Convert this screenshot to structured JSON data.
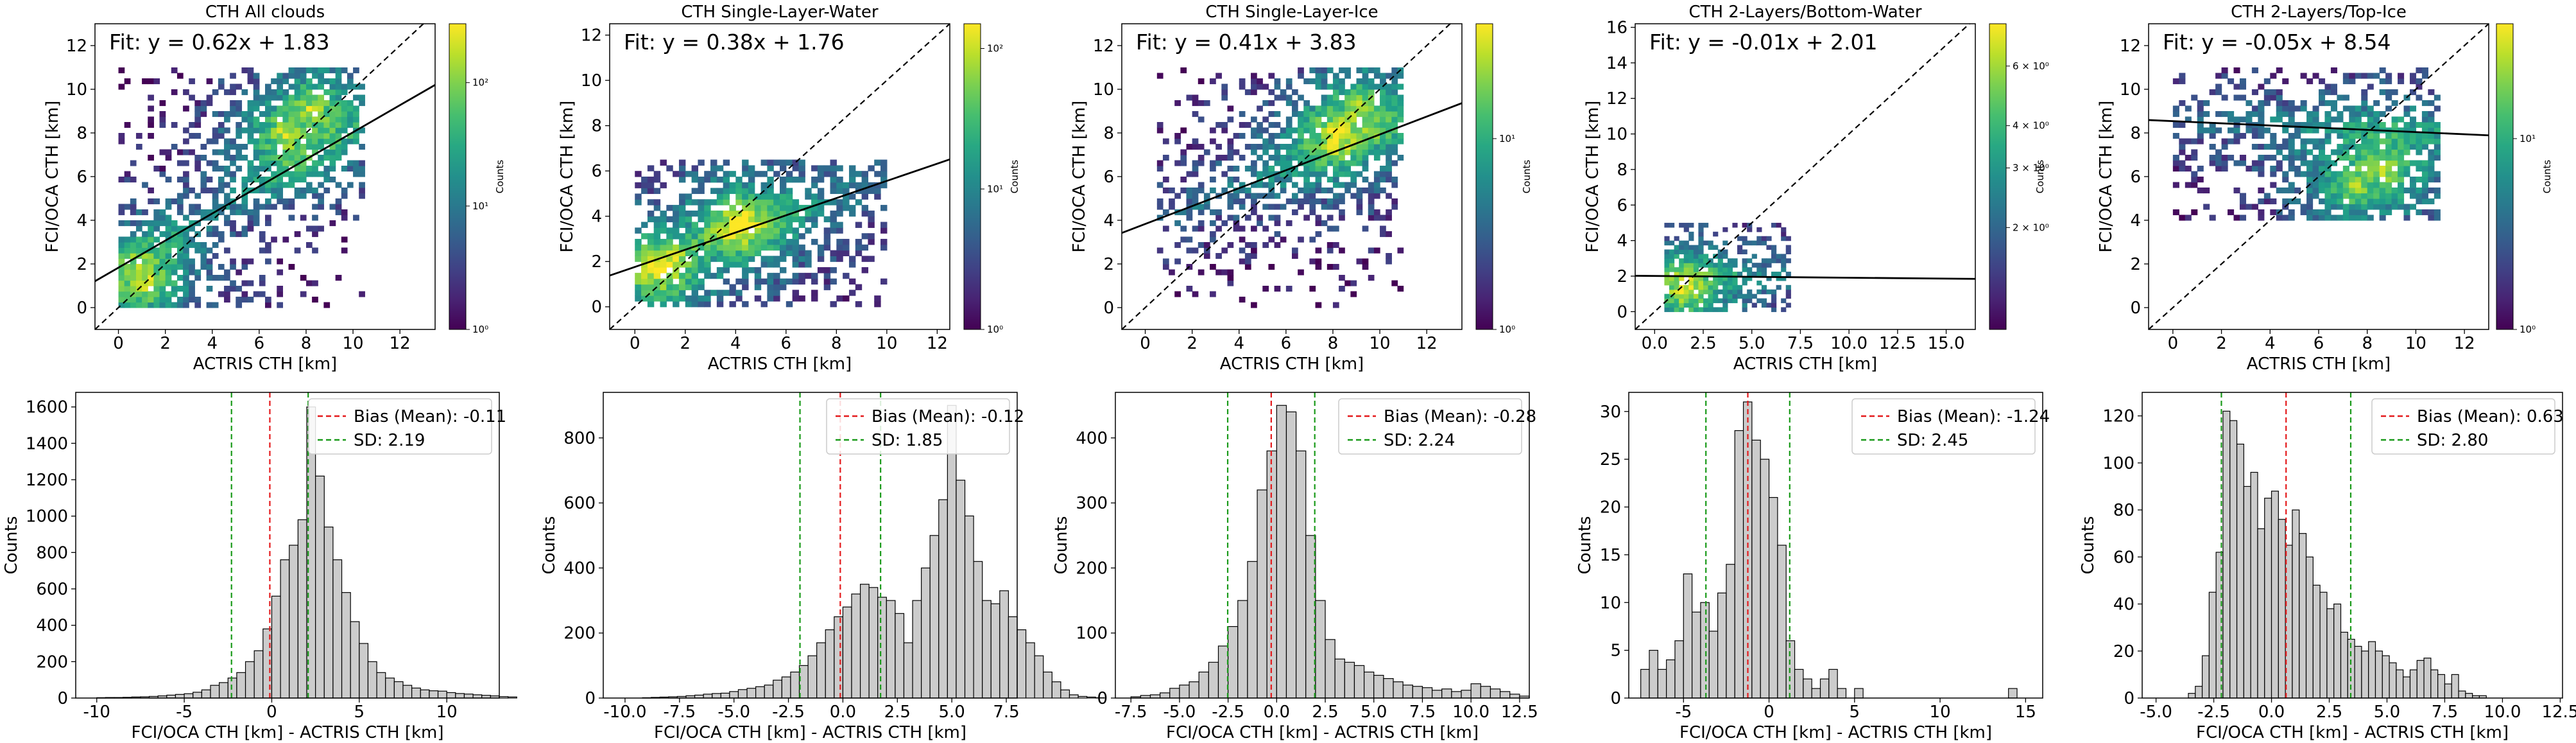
{
  "chart_data": [
    {
      "type": "heatmap",
      "title": "CTH All clouds",
      "xlabel": "ACTRIS CTH [km]",
      "ylabel": "FCI/OCA CTH [km]",
      "xlim": [
        -1,
        13.5
      ],
      "ylim": [
        -1,
        13
      ],
      "xticks": [
        0,
        2,
        4,
        6,
        8,
        10,
        12
      ],
      "yticks": [
        0,
        2,
        4,
        6,
        8,
        10,
        12
      ],
      "fit_text": "Fit: y = 0.62x + 1.83",
      "fit": {
        "slope": 0.62,
        "intercept": 1.83
      },
      "colorbar": {
        "label": "Counts",
        "scale": "log",
        "min": 1,
        "max": 300,
        "ticks": [
          "10⁰",
          "10¹",
          "10²"
        ],
        "tick_values": [
          1,
          10,
          100
        ]
      },
      "cloud": {
        "x": [
          0,
          10.5
        ],
        "y": [
          0,
          11
        ],
        "core": [
          [
            1,
            1
          ],
          [
            7,
            8
          ],
          [
            8,
            9
          ]
        ]
      }
    },
    {
      "type": "heatmap",
      "title": "CTH Single-Layer-Water",
      "xlabel": "ACTRIS CTH [km]",
      "ylabel": "FCI/OCA CTH [km]",
      "xlim": [
        -1,
        12.5
      ],
      "ylim": [
        -1,
        12.5
      ],
      "xticks": [
        0,
        2,
        4,
        6,
        8,
        10,
        12
      ],
      "yticks": [
        0,
        2,
        4,
        6,
        8,
        10,
        12
      ],
      "fit_text": "Fit: y = 0.38x + 1.76",
      "fit": {
        "slope": 0.38,
        "intercept": 1.76
      },
      "colorbar": {
        "label": "Counts",
        "scale": "log",
        "min": 1,
        "max": 150,
        "ticks": [
          "10⁰",
          "10¹",
          "10²"
        ],
        "tick_values": [
          1,
          10,
          100
        ]
      },
      "cloud": {
        "x": [
          0,
          10
        ],
        "y": [
          0,
          6.5
        ],
        "core": [
          [
            1,
            1.5
          ],
          [
            4,
            3.5
          ]
        ]
      }
    },
    {
      "type": "heatmap",
      "title": "CTH Single-Layer-Ice",
      "xlabel": "ACTRIS CTH [km]",
      "ylabel": "FCI/OCA CTH [km]",
      "xlim": [
        -1,
        13.5
      ],
      "ylim": [
        -1,
        13
      ],
      "xticks": [
        0,
        2,
        4,
        6,
        8,
        10,
        12
      ],
      "yticks": [
        0,
        2,
        4,
        6,
        8,
        10,
        12
      ],
      "fit_text": "Fit: y = 0.41x + 3.83",
      "fit": {
        "slope": 0.41,
        "intercept": 3.83
      },
      "colorbar": {
        "label": "Counts",
        "scale": "log",
        "min": 1,
        "max": 40,
        "ticks": [
          "10⁰",
          "10¹"
        ],
        "tick_values": [
          1,
          10
        ]
      },
      "cloud": {
        "x": [
          0.5,
          11
        ],
        "y": [
          0,
          11
        ],
        "core": [
          [
            8,
            8
          ],
          [
            9,
            9
          ]
        ]
      }
    },
    {
      "type": "heatmap",
      "title": "CTH 2-Layers/Bottom-Water",
      "xlabel": "ACTRIS CTH [km]",
      "ylabel": "FCI/OCA CTH [km]",
      "xlim": [
        -1,
        16.5
      ],
      "ylim": [
        -1,
        16.2
      ],
      "xticks": [
        0.0,
        2.5,
        5.0,
        7.5,
        10.0,
        12.5,
        15.0
      ],
      "yticks": [
        0,
        2,
        4,
        6,
        8,
        10,
        12,
        14,
        16
      ],
      "fit_text": "Fit: y = -0.01x + 2.01",
      "fit": {
        "slope": -0.01,
        "intercept": 2.01
      },
      "colorbar": {
        "label": "Counts",
        "scale": "log",
        "min": 1,
        "max": 8,
        "ticks": [
          "2 × 10⁰",
          "3 × 10⁰",
          "4 × 10⁰",
          "6 × 10⁰"
        ],
        "tick_values": [
          2,
          3,
          4,
          6
        ]
      },
      "cloud": {
        "x": [
          0.5,
          7
        ],
        "y": [
          0,
          5
        ],
        "core": [
          [
            1.5,
            1
          ]
        ]
      }
    },
    {
      "type": "heatmap",
      "title": "CTH 2-Layers/Top-Ice",
      "xlabel": "ACTRIS CTH [km]",
      "ylabel": "FCI/OCA CTH [km]",
      "xlim": [
        -1,
        13
      ],
      "ylim": [
        -1,
        13
      ],
      "xticks": [
        0,
        2,
        4,
        6,
        8,
        10,
        12
      ],
      "yticks": [
        0,
        2,
        4,
        6,
        8,
        10,
        12
      ],
      "fit_text": "Fit: y = -0.05x + 8.54",
      "fit": {
        "slope": -0.05,
        "intercept": 8.54
      },
      "colorbar": {
        "label": "Counts",
        "scale": "log",
        "min": 1,
        "max": 40,
        "ticks": [
          "10⁰",
          "10¹"
        ],
        "tick_values": [
          1,
          10
        ]
      },
      "cloud": {
        "x": [
          0,
          11
        ],
        "y": [
          4,
          11
        ],
        "core": [
          [
            7.5,
            5.5
          ],
          [
            8.5,
            6
          ]
        ]
      }
    },
    {
      "type": "bar",
      "subtype": "histogram",
      "xlabel": "FCI/OCA CTH [km] - ACTRIS CTH [km]",
      "ylabel": "Counts",
      "xlim": [
        -11.2,
        13
      ],
      "ylim": [
        0,
        1680
      ],
      "xticks": [
        -10,
        -5,
        0,
        5,
        10
      ],
      "yticks": [
        0,
        200,
        400,
        600,
        800,
        1000,
        1200,
        1400,
        1600
      ],
      "bias": -0.11,
      "sd": 2.19,
      "legend": {
        "bias": "Bias (Mean): -0.11",
        "sd": "SD: 2.19",
        "position": "top-right"
      },
      "bins": {
        "start": -10,
        "width": 0.5
      },
      "counts": [
        2,
        3,
        3,
        4,
        6,
        7,
        9,
        12,
        16,
        20,
        24,
        32,
        45,
        70,
        85,
        110,
        140,
        200,
        260,
        380,
        560,
        760,
        840,
        980,
        1600,
        1220,
        940,
        760,
        580,
        420,
        300,
        200,
        140,
        110,
        90,
        70,
        55,
        45,
        40,
        38,
        30,
        25,
        22,
        18,
        15,
        12,
        8,
        6
      ]
    },
    {
      "type": "bar",
      "subtype": "histogram",
      "xlabel": "FCI/OCA CTH [km] - ACTRIS CTH [km]",
      "ylabel": "Counts",
      "xlim": [
        -11,
        8
      ],
      "ylim": [
        0,
        940
      ],
      "xticks": [
        -10.0,
        -7.5,
        -5.0,
        -2.5,
        0.0,
        2.5,
        5.0,
        7.5
      ],
      "yticks": [
        0,
        200,
        400,
        600,
        800
      ],
      "bias": -0.12,
      "sd": 1.85,
      "legend": {
        "bias": "Bias (Mean): -0.12",
        "sd": "SD: 1.85",
        "position": "top-right"
      },
      "bins": {
        "start": -9.2,
        "width": 0.4
      },
      "counts": [
        1,
        2,
        3,
        4,
        5,
        7,
        9,
        12,
        14,
        15,
        20,
        26,
        30,
        35,
        40,
        55,
        65,
        80,
        100,
        130,
        170,
        210,
        250,
        280,
        320,
        350,
        340,
        310,
        300,
        260,
        170,
        300,
        400,
        500,
        610,
        900,
        670,
        560,
        420,
        300,
        290,
        330,
        250,
        210,
        170,
        130,
        80,
        50,
        25,
        10,
        5,
        3,
        1
      ]
    },
    {
      "type": "bar",
      "subtype": "histogram",
      "xlabel": "FCI/OCA CTH [km] - ACTRIS CTH [km]",
      "ylabel": "Counts",
      "xlim": [
        -8.3,
        13
      ],
      "ylim": [
        0,
        470
      ],
      "xticks": [
        -7.5,
        -5.0,
        -2.5,
        0.0,
        2.5,
        5.0,
        7.5,
        10.0,
        12.5
      ],
      "yticks": [
        0,
        100,
        200,
        300,
        400
      ],
      "bias": -0.28,
      "sd": 2.24,
      "legend": {
        "bias": "Bias (Mean): -0.28",
        "sd": "SD: 2.24",
        "position": "top-right"
      },
      "bins": {
        "start": -7.5,
        "width": 0.5
      },
      "counts": [
        2,
        4,
        5,
        8,
        15,
        20,
        25,
        40,
        55,
        80,
        110,
        150,
        210,
        320,
        380,
        450,
        440,
        380,
        250,
        150,
        90,
        60,
        55,
        50,
        40,
        35,
        30,
        25,
        20,
        18,
        16,
        12,
        14,
        10,
        12,
        22,
        18,
        14,
        10,
        6,
        3
      ]
    },
    {
      "type": "bar",
      "subtype": "histogram",
      "xlabel": "FCI/OCA CTH [km] - ACTRIS CTH [km]",
      "ylabel": "Counts",
      "xlim": [
        -8.2,
        16
      ],
      "ylim": [
        0,
        32
      ],
      "xticks": [
        -5,
        0,
        5,
        10,
        15
      ],
      "yticks": [
        0,
        5,
        10,
        15,
        20,
        25,
        30
      ],
      "bias": -1.24,
      "sd": 2.45,
      "legend": {
        "bias": "Bias (Mean): -1.24",
        "sd": "SD: 2.45",
        "position": "top-right"
      },
      "bins": {
        "start": -7.5,
        "width": 0.5
      },
      "counts": [
        3,
        5,
        3,
        4,
        6,
        13,
        9,
        10,
        7,
        11,
        14,
        28,
        31,
        27,
        25,
        21,
        16,
        6,
        3,
        2,
        1,
        2,
        3,
        1,
        0,
        1,
        0,
        0,
        0,
        0,
        0,
        0,
        0,
        0,
        0,
        0,
        0,
        0,
        0,
        0,
        0,
        0,
        0,
        1
      ]
    },
    {
      "type": "bar",
      "subtype": "histogram",
      "xlabel": "FCI/OCA CTH [km] - ACTRIS CTH [km]",
      "ylabel": "Counts",
      "xlim": [
        -5.6,
        12.6
      ],
      "ylim": [
        0,
        130
      ],
      "xticks": [
        -5.0,
        -2.5,
        0.0,
        2.5,
        5.0,
        7.5,
        10.0,
        12.5
      ],
      "yticks": [
        0,
        20,
        40,
        60,
        80,
        100,
        120
      ],
      "bias": 0.63,
      "sd": 2.8,
      "legend": {
        "bias": "Bias (Mean): 0.63",
        "sd": "SD: 2.80",
        "position": "top-right"
      },
      "bins": {
        "start": -3.6,
        "width": 0.3
      },
      "counts": [
        2,
        5,
        18,
        45,
        62,
        122,
        118,
        108,
        90,
        96,
        72,
        85,
        88,
        76,
        65,
        80,
        70,
        60,
        48,
        45,
        38,
        40,
        28,
        25,
        22,
        20,
        24,
        20,
        18,
        15,
        12,
        9,
        12,
        16,
        17,
        12,
        10,
        6,
        10,
        3,
        2,
        1,
        1
      ]
    }
  ]
}
